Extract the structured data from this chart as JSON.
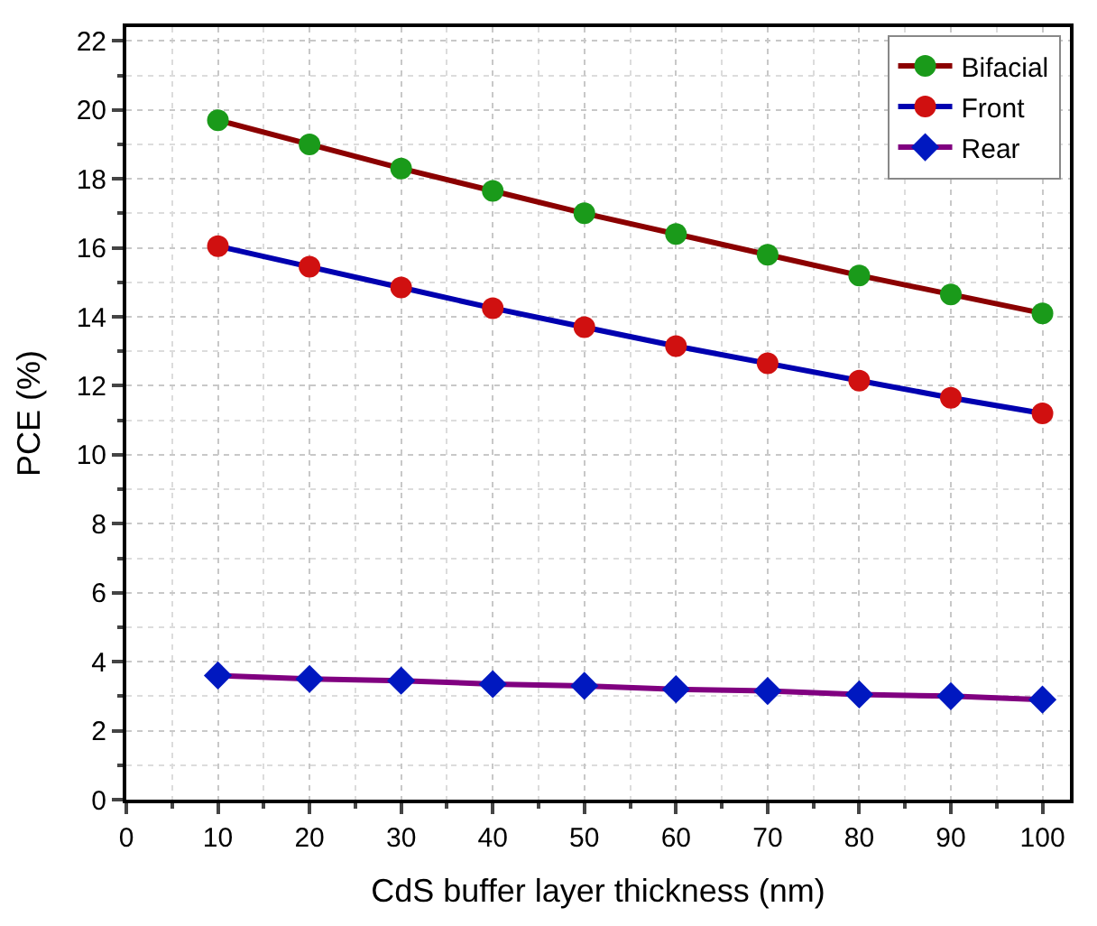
{
  "chart_data": {
    "type": "line",
    "xlabel": "CdS buffer layer thickness (nm)",
    "ylabel": "PCE (%)",
    "x": [
      10,
      20,
      30,
      40,
      50,
      60,
      70,
      80,
      90,
      100
    ],
    "series": [
      {
        "name": "Bifacial",
        "color": "#8b0000",
        "colors": [
          "#1a9a1a",
          "#1a9a1a",
          "#1a9a1a",
          "#1a9a1a",
          "#1a9a1a",
          "#1a9a1a",
          "#1a9a1a",
          "#1a9a1a",
          "#1a9a1a",
          "#1a9a1a"
        ],
        "marker": "circle",
        "values": [
          19.7,
          19.0,
          18.3,
          17.65,
          17.0,
          16.4,
          15.8,
          15.2,
          14.65,
          14.1
        ]
      },
      {
        "name": "Front",
        "color": "#0000b0",
        "colors": [
          "#d01010",
          "#d01010",
          "#d01010",
          "#d01010",
          "#d01010",
          "#d01010",
          "#d01010",
          "#d01010",
          "#d01010",
          "#d01010"
        ],
        "marker": "circle",
        "values": [
          16.05,
          15.45,
          14.85,
          14.25,
          13.7,
          13.15,
          12.65,
          12.15,
          11.65,
          11.2
        ]
      },
      {
        "name": "Rear",
        "color": "#800080",
        "colors": [
          "#0018c0",
          "#0018c0",
          "#0018c0",
          "#0018c0",
          "#0018c0",
          "#0018c0",
          "#0018c0",
          "#0018c0",
          "#0018c0",
          "#0018c0"
        ],
        "marker": "diamond",
        "values": [
          3.6,
          3.5,
          3.45,
          3.35,
          3.3,
          3.2,
          3.15,
          3.05,
          3.0,
          2.9
        ]
      }
    ],
    "xlim": [
      0,
      103
    ],
    "xticks": [
      0,
      10,
      20,
      30,
      40,
      50,
      60,
      70,
      80,
      90,
      100
    ],
    "ylim": [
      0,
      22.4
    ],
    "yticks": [
      0,
      2,
      4,
      6,
      8,
      10,
      12,
      14,
      16,
      18,
      20,
      22
    ],
    "grid": true,
    "legend": "top right",
    "line_style": "solid"
  }
}
